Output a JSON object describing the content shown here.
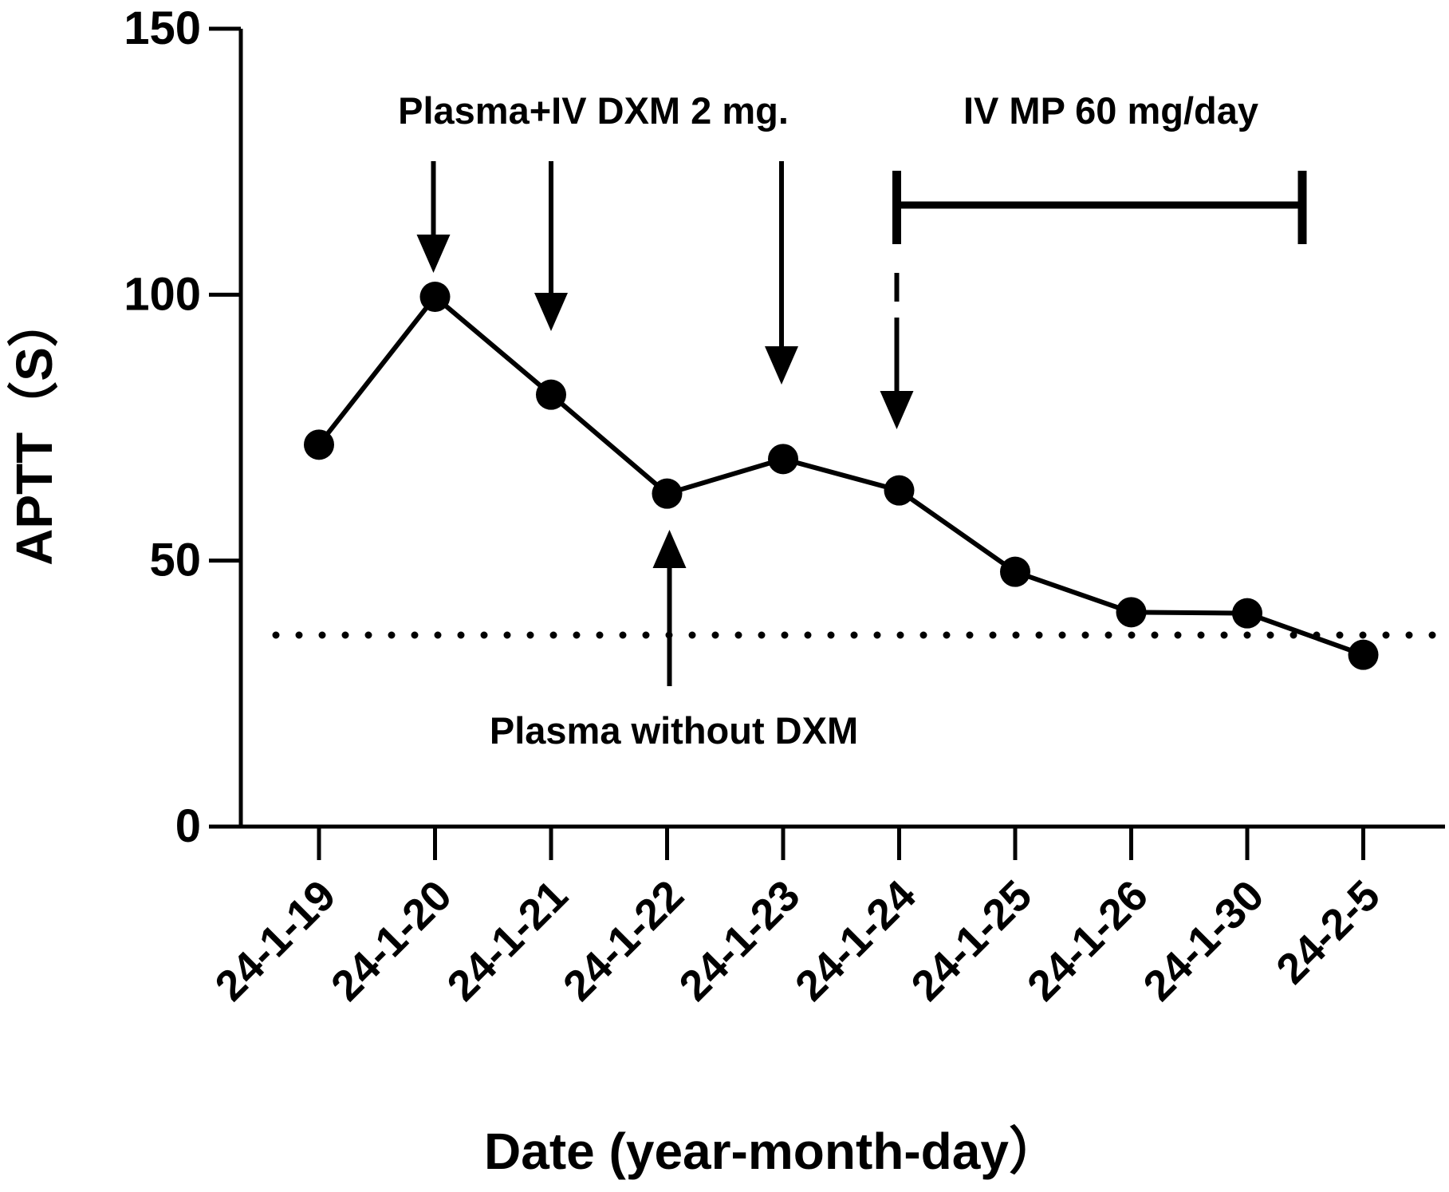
{
  "chart_data": {
    "type": "line",
    "title": "",
    "xlabel": "Date (year-month-day）",
    "ylabel": "APTT（S）",
    "ylim": [
      0,
      150
    ],
    "yticks": [
      "0",
      "50",
      "100",
      "150"
    ],
    "categories": [
      "24-1-19",
      "24-1-20",
      "24-1-21",
      "24-1-22",
      "24-1-23",
      "24-1-24",
      "24-1-25",
      "24-1-26",
      "24-1-30",
      "24-2-5"
    ],
    "series": [
      {
        "values": [
          71.8,
          99.6,
          81.2,
          62.6,
          69.1,
          63.2,
          47.9,
          40.3,
          40.1,
          32.3
        ]
      }
    ],
    "reference_line": {
      "value": 36,
      "style": "dotted"
    },
    "grid": false,
    "annotations": {
      "dxm_label": "Plasma+IV DXM 2 mg.",
      "dxm_dates": [
        "24-1-20",
        "24-1-21",
        "24-1-23",
        "24-1-24"
      ],
      "mp_label": "IV MP 60 mg/day",
      "mp_range": [
        "24-1-24",
        "24-1-30"
      ],
      "plasma_label": "Plasma without DXM",
      "plasma_date": "24-1-22"
    },
    "colors": {
      "line": "#000000",
      "background": "#ffffff"
    }
  }
}
